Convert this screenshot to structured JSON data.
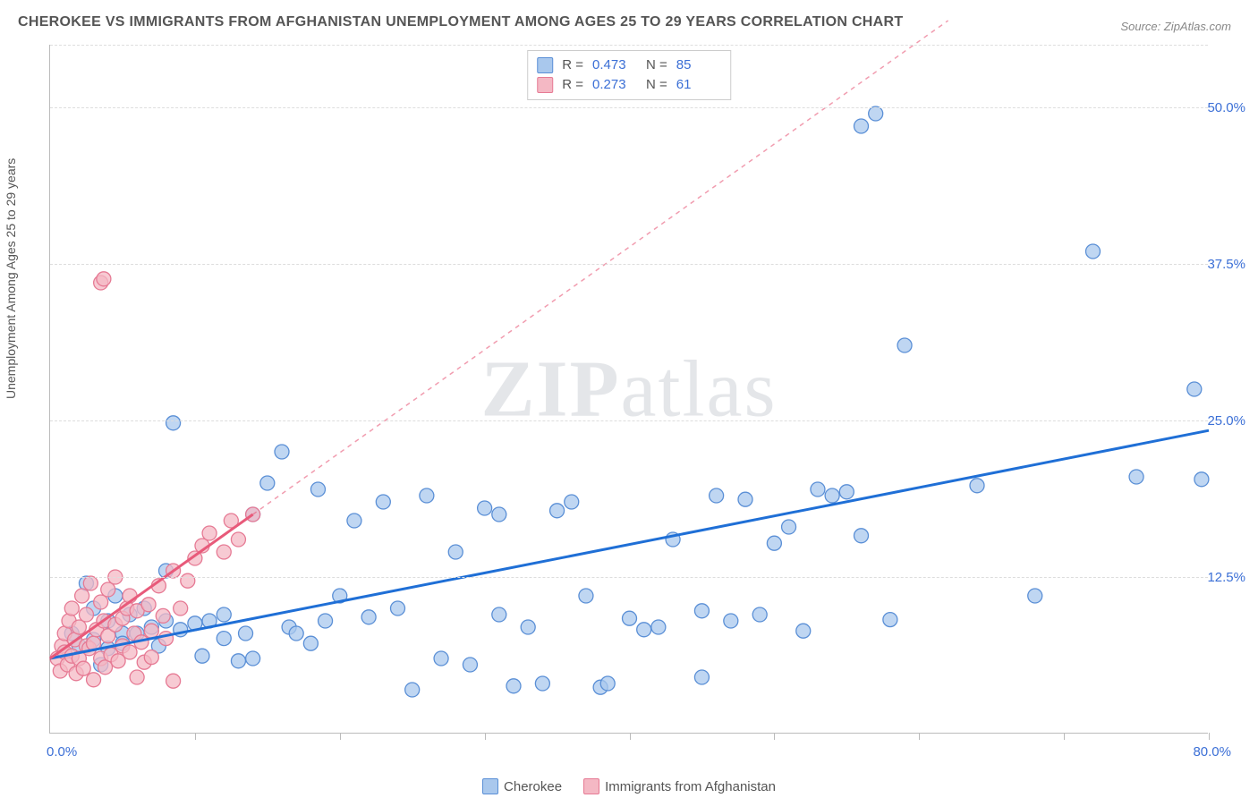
{
  "chart": {
    "type": "scatter",
    "title": "CHEROKEE VS IMMIGRANTS FROM AFGHANISTAN UNEMPLOYMENT AMONG AGES 25 TO 29 YEARS CORRELATION CHART",
    "source": "Source: ZipAtlas.com",
    "ylabel": "Unemployment Among Ages 25 to 29 years",
    "watermark_a": "ZIP",
    "watermark_b": "atlas",
    "xlim": [
      0,
      80
    ],
    "ylim": [
      0,
      55
    ],
    "x_axis_min_label": "0.0%",
    "x_axis_max_label": "80.0%",
    "y_ticks": [
      12.5,
      25.0,
      37.5,
      50.0
    ],
    "y_tick_labels": [
      "12.5%",
      "25.0%",
      "37.5%",
      "50.0%"
    ],
    "x_tick_positions": [
      10,
      20,
      30,
      40,
      50,
      60,
      70,
      80
    ],
    "grid_color": "#dddddd",
    "axis_color": "#bbbbbb",
    "background_color": "#ffffff",
    "axis_label_color": "#3b6fd6",
    "title_color": "#555555",
    "title_fontsize": 16,
    "axis_fontsize": 15,
    "ylabel_fontsize": 14,
    "series": [
      {
        "name": "Cherokee",
        "marker_fill": "#a9c8ed",
        "marker_stroke": "#5a8fd6",
        "marker_radius": 8,
        "marker_opacity": 0.75,
        "line_color": "#1f6fd6",
        "line_width": 3,
        "line_dash": "none",
        "R": "0.473",
        "N": "85",
        "regression": {
          "x1": 0,
          "y1": 6.0,
          "x2": 80,
          "y2": 24.2,
          "extrapolate": false
        },
        "points": [
          [
            1,
            6.5
          ],
          [
            1.5,
            8
          ],
          [
            2,
            7
          ],
          [
            2.5,
            12
          ],
          [
            3,
            7.5
          ],
          [
            3,
            10
          ],
          [
            3.5,
            5.5
          ],
          [
            4,
            6.8
          ],
          [
            4,
            9
          ],
          [
            4.5,
            11
          ],
          [
            5,
            8
          ],
          [
            5,
            7.2
          ],
          [
            5.5,
            9.5
          ],
          [
            6,
            8
          ],
          [
            6.5,
            10
          ],
          [
            7,
            8.5
          ],
          [
            7.5,
            7
          ],
          [
            8,
            9
          ],
          [
            8,
            13
          ],
          [
            8.5,
            24.8
          ],
          [
            9,
            8.3
          ],
          [
            10,
            8.8
          ],
          [
            10.5,
            6.2
          ],
          [
            11,
            9
          ],
          [
            12,
            9.5
          ],
          [
            12,
            7.6
          ],
          [
            13,
            5.8
          ],
          [
            13.5,
            8
          ],
          [
            14,
            6
          ],
          [
            14,
            17.5
          ],
          [
            15,
            20
          ],
          [
            16,
            22.5
          ],
          [
            16.5,
            8.5
          ],
          [
            17,
            8
          ],
          [
            18,
            7.2
          ],
          [
            18.5,
            19.5
          ],
          [
            19,
            9
          ],
          [
            20,
            11
          ],
          [
            21,
            17
          ],
          [
            22,
            9.3
          ],
          [
            23,
            18.5
          ],
          [
            24,
            10
          ],
          [
            25,
            3.5
          ],
          [
            26,
            19
          ],
          [
            27,
            6
          ],
          [
            28,
            14.5
          ],
          [
            29,
            5.5
          ],
          [
            30,
            18
          ],
          [
            31,
            17.5
          ],
          [
            31,
            9.5
          ],
          [
            32,
            3.8
          ],
          [
            33,
            8.5
          ],
          [
            34,
            4
          ],
          [
            35,
            17.8
          ],
          [
            36,
            18.5
          ],
          [
            37,
            11
          ],
          [
            38,
            3.7
          ],
          [
            38.5,
            4
          ],
          [
            40,
            9.2
          ],
          [
            41,
            8.3
          ],
          [
            42,
            8.5
          ],
          [
            43,
            15.5
          ],
          [
            45,
            4.5
          ],
          [
            46,
            19
          ],
          [
            47,
            9
          ],
          [
            48,
            18.7
          ],
          [
            49,
            9.5
          ],
          [
            50,
            15.2
          ],
          [
            51,
            16.5
          ],
          [
            52,
            8.2
          ],
          [
            53,
            19.5
          ],
          [
            54,
            19
          ],
          [
            55,
            19.3
          ],
          [
            56,
            15.8
          ],
          [
            56,
            48.5
          ],
          [
            57,
            49.5
          ],
          [
            58,
            9.1
          ],
          [
            59,
            31
          ],
          [
            64,
            19.8
          ],
          [
            68,
            11
          ],
          [
            72,
            38.5
          ],
          [
            75,
            20.5
          ],
          [
            79,
            27.5
          ],
          [
            79.5,
            20.3
          ],
          [
            45,
            9.8
          ]
        ]
      },
      {
        "name": "Immigrants from Afghanistan",
        "marker_fill": "#f4b8c4",
        "marker_stroke": "#e67a94",
        "marker_radius": 8,
        "marker_opacity": 0.75,
        "line_color": "#e85a7a",
        "line_width": 3,
        "line_dash": "4,4",
        "R": "0.273",
        "N": "61",
        "regression": {
          "x1": 0,
          "y1": 6.0,
          "x2": 14,
          "y2": 17.5,
          "extrapolate": true,
          "extrapolate_to_x": 62
        },
        "points": [
          [
            0.5,
            6
          ],
          [
            0.7,
            5
          ],
          [
            0.8,
            7
          ],
          [
            1,
            6.5
          ],
          [
            1,
            8
          ],
          [
            1.2,
            5.5
          ],
          [
            1.3,
            9
          ],
          [
            1.5,
            6.2
          ],
          [
            1.5,
            10
          ],
          [
            1.7,
            7.5
          ],
          [
            1.8,
            4.8
          ],
          [
            2,
            6
          ],
          [
            2,
            8.5
          ],
          [
            2.2,
            11
          ],
          [
            2.3,
            5.2
          ],
          [
            2.5,
            7
          ],
          [
            2.5,
            9.5
          ],
          [
            2.7,
            6.8
          ],
          [
            2.8,
            12
          ],
          [
            3,
            7.2
          ],
          [
            3,
            4.3
          ],
          [
            3.2,
            8.3
          ],
          [
            3.5,
            10.5
          ],
          [
            3.5,
            6
          ],
          [
            3.7,
            9
          ],
          [
            3.8,
            5.3
          ],
          [
            4,
            7.8
          ],
          [
            4,
            11.5
          ],
          [
            4.2,
            6.3
          ],
          [
            4.5,
            8.7
          ],
          [
            4.5,
            12.5
          ],
          [
            4.7,
            5.8
          ],
          [
            5,
            9.2
          ],
          [
            5,
            7
          ],
          [
            5.3,
            10
          ],
          [
            5.5,
            6.5
          ],
          [
            5.5,
            11
          ],
          [
            5.8,
            8
          ],
          [
            6,
            4.5
          ],
          [
            6,
            9.8
          ],
          [
            6.3,
            7.3
          ],
          [
            6.5,
            5.7
          ],
          [
            6.8,
            10.3
          ],
          [
            7,
            8.2
          ],
          [
            7,
            6.1
          ],
          [
            7.5,
            11.8
          ],
          [
            7.8,
            9.4
          ],
          [
            8,
            7.6
          ],
          [
            8.5,
            13
          ],
          [
            8.5,
            4.2
          ],
          [
            9,
            10
          ],
          [
            9.5,
            12.2
          ],
          [
            10,
            14
          ],
          [
            10.5,
            15
          ],
          [
            3.5,
            36
          ],
          [
            3.7,
            36.3
          ],
          [
            11,
            16
          ],
          [
            12,
            14.5
          ],
          [
            12.5,
            17
          ],
          [
            13,
            15.5
          ],
          [
            14,
            17.5
          ]
        ]
      }
    ],
    "legend_top": {
      "R_label": "R =",
      "N_label": "N ="
    },
    "legend_bottom": [
      {
        "label": "Cherokee",
        "fill": "#a9c8ed",
        "stroke": "#5a8fd6"
      },
      {
        "label": "Immigrants from Afghanistan",
        "fill": "#f4b8c4",
        "stroke": "#e67a94"
      }
    ]
  }
}
